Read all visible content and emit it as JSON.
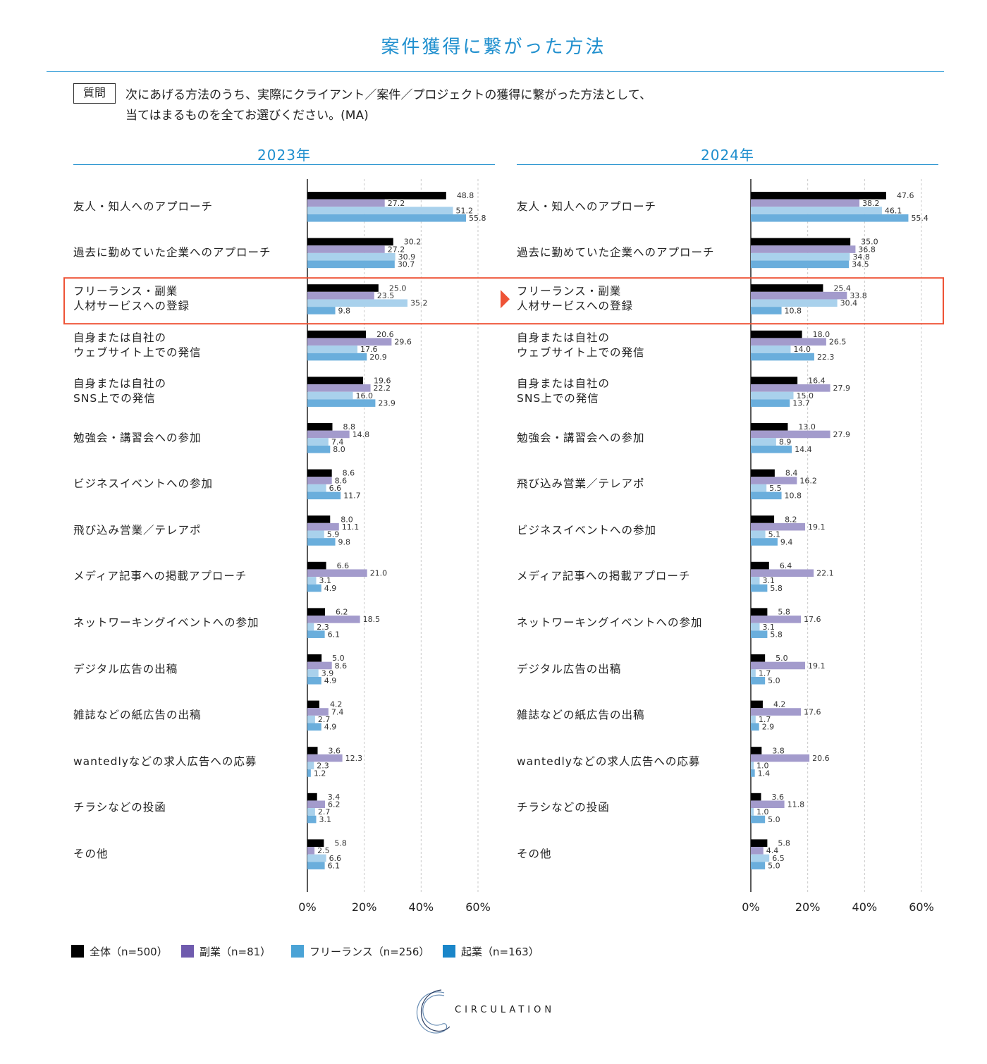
{
  "page": {
    "title": "案件獲得に繋がった方法",
    "question_badge": "質問",
    "question_line1": "次にあげる方法のうち、実際にクライアント／案件／プロジェクトの獲得に繋がった方法として、",
    "question_line2": "当てはまるものを全てお選びください。(MA)",
    "logo_text": "CIRCULATION"
  },
  "colors": {
    "accent": "#1f8fce",
    "highlight": "#ee5336",
    "series": [
      "#000000",
      "#a39bcc",
      "#a9d1ec",
      "#6aaedc"
    ],
    "legend": [
      "#000000",
      "#6f5bae",
      "#4aa3d6",
      "#1a86c9"
    ]
  },
  "legend": [
    {
      "label": "全体（n=500）",
      "icon": "black-square"
    },
    {
      "label": "副業（n=81）",
      "icon": "purple-square"
    },
    {
      "label": "フリーランス（n=256）",
      "icon": "light-blue-square"
    },
    {
      "label": "起業（n=163）",
      "icon": "blue-square"
    }
  ],
  "chart_data": [
    {
      "type": "bar",
      "orientation": "horizontal",
      "title": "2023年",
      "xlim": [
        0,
        60
      ],
      "xticks": [
        "0%",
        "20%",
        "40%",
        "60%"
      ],
      "highlight_index": 2,
      "categories": [
        [
          "友人・知人へのアプローチ"
        ],
        [
          "過去に勤めていた企業へのアプローチ"
        ],
        [
          "フリーランス・副業",
          "人材サービスへの登録"
        ],
        [
          "自身または自社の",
          "ウェブサイト上での発信"
        ],
        [
          "自身または自社の",
          "SNS上での発信"
        ],
        [
          "勉強会・講習会への参加"
        ],
        [
          "ビジネスイベントへの参加"
        ],
        [
          "飛び込み営業／テレアポ"
        ],
        [
          "メディア記事への掲載アプローチ"
        ],
        [
          "ネットワーキングイベントへの参加"
        ],
        [
          "デジタル広告の出稿"
        ],
        [
          "雑誌などの紙広告の出稿"
        ],
        [
          "wantedlyなどの求人広告への応募"
        ],
        [
          "チラシなどの投函"
        ],
        [
          "その他"
        ]
      ],
      "series": [
        {
          "name": "全体（n=500）",
          "values": [
            48.8,
            30.2,
            25.0,
            20.6,
            19.6,
            8.8,
            8.6,
            8.0,
            6.6,
            6.2,
            5.0,
            4.2,
            3.6,
            3.4,
            5.8
          ]
        },
        {
          "name": "副業（n=81）",
          "values": [
            27.2,
            27.2,
            23.5,
            29.6,
            22.2,
            14.8,
            8.6,
            11.1,
            21.0,
            18.5,
            8.6,
            7.4,
            12.3,
            6.2,
            2.5
          ]
        },
        {
          "name": "フリーランス（n=256）",
          "values": [
            51.2,
            30.9,
            35.2,
            17.6,
            16.0,
            7.4,
            6.6,
            5.9,
            3.1,
            2.3,
            3.9,
            2.7,
            2.3,
            2.7,
            6.6
          ]
        },
        {
          "name": "起業（n=163）",
          "values": [
            55.8,
            30.7,
            9.8,
            20.9,
            23.9,
            8.0,
            11.7,
            9.8,
            4.9,
            6.1,
            4.9,
            4.9,
            1.2,
            3.1,
            6.1
          ]
        }
      ]
    },
    {
      "type": "bar",
      "orientation": "horizontal",
      "title": "2024年",
      "xlim": [
        0,
        60
      ],
      "xticks": [
        "0%",
        "20%",
        "40%",
        "60%"
      ],
      "highlight_index": 2,
      "categories": [
        [
          "友人・知人へのアプローチ"
        ],
        [
          "過去に勤めていた企業へのアプローチ"
        ],
        [
          "フリーランス・副業",
          "人材サービスへの登録"
        ],
        [
          "自身または自社の",
          "ウェブサイト上での発信"
        ],
        [
          "自身または自社の",
          "SNS上での発信"
        ],
        [
          "勉強会・講習会への参加"
        ],
        [
          "飛び込み営業／テレアポ"
        ],
        [
          "ビジネスイベントへの参加"
        ],
        [
          "メディア記事への掲載アプローチ"
        ],
        [
          "ネットワーキングイベントへの参加"
        ],
        [
          "デジタル広告の出稿"
        ],
        [
          "雑誌などの紙広告の出稿"
        ],
        [
          "wantedlyなどの求人広告への応募"
        ],
        [
          "チラシなどの投函"
        ],
        [
          "その他"
        ]
      ],
      "series": [
        {
          "name": "全体（n=500）",
          "values": [
            47.6,
            35.0,
            25.4,
            18.0,
            16.4,
            13.0,
            8.4,
            8.2,
            6.4,
            5.8,
            5.0,
            4.2,
            3.8,
            3.6,
            5.8
          ]
        },
        {
          "name": "副業（n=81）",
          "values": [
            38.2,
            36.8,
            33.8,
            26.5,
            27.9,
            27.9,
            16.2,
            19.1,
            22.1,
            17.6,
            19.1,
            17.6,
            20.6,
            11.8,
            4.4
          ]
        },
        {
          "name": "フリーランス（n=256）",
          "values": [
            46.1,
            34.8,
            30.4,
            14.0,
            15.0,
            8.9,
            5.5,
            5.1,
            3.1,
            3.1,
            1.7,
            1.7,
            1.0,
            1.0,
            6.5
          ]
        },
        {
          "name": "起業（n=163）",
          "values": [
            55.4,
            34.5,
            10.8,
            22.3,
            13.7,
            14.4,
            10.8,
            9.4,
            5.8,
            5.8,
            5.0,
            2.9,
            1.4,
            5.0,
            5.0
          ]
        }
      ]
    }
  ]
}
